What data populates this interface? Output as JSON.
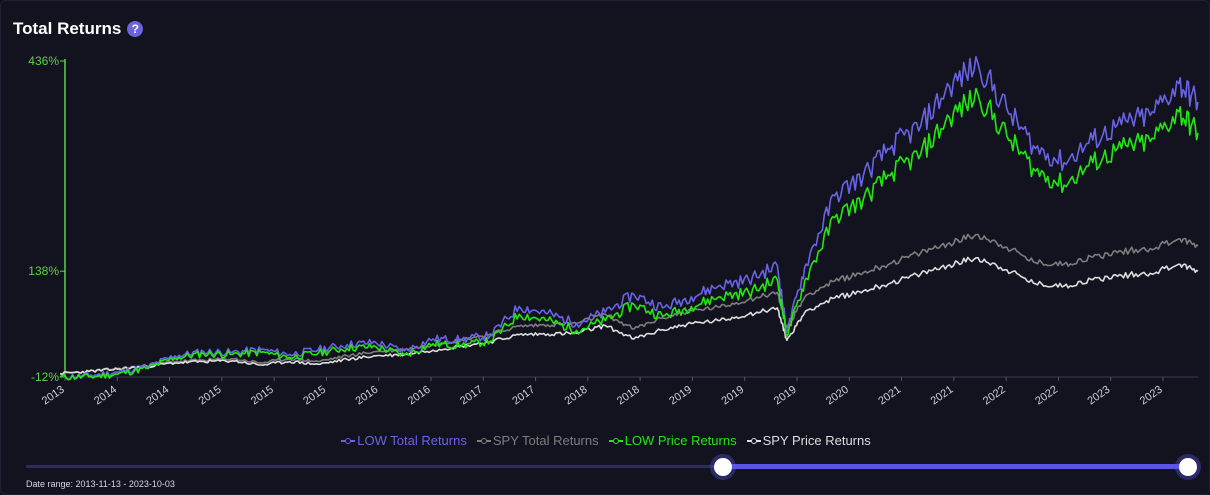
{
  "header": {
    "title": "Total Returns",
    "help_icon": "?"
  },
  "date_range_label": "Date range: 2013-11-13 - 2023-10-03",
  "slider": {
    "start_fraction": 0.6,
    "end_fraction": 1.0
  },
  "colors": {
    "low_total": "#6a63e6",
    "spy_total": "#7d7d7d",
    "low_price": "#22e812",
    "spy_price": "#dedede",
    "axis": "#5fd14a",
    "tick_text": "#cfcfd8"
  },
  "chart_data": {
    "type": "line",
    "y_axis": {
      "min": -12,
      "max": 436,
      "unit": "%",
      "tick_labels": [
        "-12%",
        "138%",
        "436%"
      ]
    },
    "x_tick_labels": [
      "2013",
      "2014",
      "2014",
      "2015",
      "2015",
      "2015",
      "2016",
      "2016",
      "2017",
      "2017",
      "2018",
      "2018",
      "2019",
      "2019",
      "2019",
      "2020",
      "2021",
      "2021",
      "2022",
      "2022",
      "2023",
      "2023"
    ],
    "legend": {
      "position": "bottom-center"
    },
    "series": [
      {
        "name": "LOW Total Returns",
        "color": "#6a63e6",
        "points": [
          [
            "2013-11",
            -12
          ],
          [
            "2014-02",
            -10
          ],
          [
            "2014-05",
            -5
          ],
          [
            "2014-08",
            2
          ],
          [
            "2014-11",
            18
          ],
          [
            "2015-02",
            24
          ],
          [
            "2015-05",
            23
          ],
          [
            "2015-08",
            27
          ],
          [
            "2015-11",
            20
          ],
          [
            "2016-02",
            27
          ],
          [
            "2016-05",
            34
          ],
          [
            "2016-08",
            37
          ],
          [
            "2016-11",
            25
          ],
          [
            "2017-02",
            42
          ],
          [
            "2017-05",
            41
          ],
          [
            "2017-08",
            47
          ],
          [
            "2017-11",
            88
          ],
          [
            "2018-02",
            78
          ],
          [
            "2018-05",
            64
          ],
          [
            "2018-08",
            80
          ],
          [
            "2018-11",
            105
          ],
          [
            "2019-02",
            86
          ],
          [
            "2019-05",
            102
          ],
          [
            "2019-08",
            118
          ],
          [
            "2019-11",
            126
          ],
          [
            "2020-02",
            146
          ],
          [
            "2020-03",
            52
          ],
          [
            "2020-05",
            148
          ],
          [
            "2020-08",
            245
          ],
          [
            "2020-11",
            274
          ],
          [
            "2021-02",
            316
          ],
          [
            "2021-05",
            344
          ],
          [
            "2021-08",
            400
          ],
          [
            "2021-11",
            432
          ],
          [
            "2022-02",
            368
          ],
          [
            "2022-05",
            312
          ],
          [
            "2022-08",
            292
          ],
          [
            "2022-11",
            324
          ],
          [
            "2023-02",
            346
          ],
          [
            "2023-05",
            359
          ],
          [
            "2023-08",
            404
          ],
          [
            "2023-10",
            378
          ]
        ]
      },
      {
        "name": "SPY Total Returns",
        "color": "#7d7d7d",
        "points": [
          [
            "2013-11",
            -8
          ],
          [
            "2014-02",
            -4
          ],
          [
            "2014-05",
            0
          ],
          [
            "2014-08",
            4
          ],
          [
            "2014-11",
            10
          ],
          [
            "2015-02",
            12
          ],
          [
            "2015-05",
            14
          ],
          [
            "2015-08",
            8
          ],
          [
            "2015-11",
            14
          ],
          [
            "2016-02",
            10
          ],
          [
            "2016-05",
            18
          ],
          [
            "2016-08",
            24
          ],
          [
            "2016-11",
            27
          ],
          [
            "2017-02",
            34
          ],
          [
            "2017-05",
            41
          ],
          [
            "2017-08",
            49
          ],
          [
            "2017-11",
            60
          ],
          [
            "2018-02",
            62
          ],
          [
            "2018-05",
            64
          ],
          [
            "2018-08",
            77
          ],
          [
            "2018-11",
            56
          ],
          [
            "2019-02",
            72
          ],
          [
            "2019-05",
            82
          ],
          [
            "2019-08",
            87
          ],
          [
            "2019-11",
            98
          ],
          [
            "2020-02",
            108
          ],
          [
            "2020-03",
            58
          ],
          [
            "2020-05",
            104
          ],
          [
            "2020-08",
            124
          ],
          [
            "2020-11",
            136
          ],
          [
            "2021-02",
            150
          ],
          [
            "2021-05",
            164
          ],
          [
            "2021-08",
            178
          ],
          [
            "2021-11",
            190
          ],
          [
            "2022-02",
            172
          ],
          [
            "2022-05",
            150
          ],
          [
            "2022-08",
            148
          ],
          [
            "2022-11",
            158
          ],
          [
            "2023-02",
            166
          ],
          [
            "2023-05",
            170
          ],
          [
            "2023-08",
            184
          ],
          [
            "2023-10",
            174
          ]
        ]
      },
      {
        "name": "LOW Price Returns",
        "color": "#22e812",
        "points": [
          [
            "2013-11",
            -12
          ],
          [
            "2014-02",
            -12
          ],
          [
            "2014-05",
            -8
          ],
          [
            "2014-08",
            0
          ],
          [
            "2014-11",
            15
          ],
          [
            "2015-02",
            21
          ],
          [
            "2015-05",
            20
          ],
          [
            "2015-08",
            23
          ],
          [
            "2015-11",
            16
          ],
          [
            "2016-02",
            22
          ],
          [
            "2016-05",
            29
          ],
          [
            "2016-08",
            31
          ],
          [
            "2016-11",
            19
          ],
          [
            "2017-02",
            35
          ],
          [
            "2017-05",
            33
          ],
          [
            "2017-08",
            39
          ],
          [
            "2017-11",
            77
          ],
          [
            "2018-02",
            68
          ],
          [
            "2018-05",
            54
          ],
          [
            "2018-08",
            68
          ],
          [
            "2018-11",
            91
          ],
          [
            "2019-02",
            74
          ],
          [
            "2019-05",
            88
          ],
          [
            "2019-08",
            102
          ],
          [
            "2019-11",
            108
          ],
          [
            "2020-02",
            126
          ],
          [
            "2020-03",
            46
          ],
          [
            "2020-05",
            128
          ],
          [
            "2020-08",
            214
          ],
          [
            "2020-11",
            240
          ],
          [
            "2021-02",
            278
          ],
          [
            "2021-05",
            304
          ],
          [
            "2021-08",
            356
          ],
          [
            "2021-11",
            388
          ],
          [
            "2022-02",
            330
          ],
          [
            "2022-05",
            280
          ],
          [
            "2022-08",
            260
          ],
          [
            "2022-11",
            292
          ],
          [
            "2023-02",
            312
          ],
          [
            "2023-05",
            322
          ],
          [
            "2023-08",
            364
          ],
          [
            "2023-10",
            334
          ]
        ]
      },
      {
        "name": "SPY Price Returns",
        "color": "#dedede",
        "points": [
          [
            "2013-11",
            -7
          ],
          [
            "2014-02",
            -4
          ],
          [
            "2014-05",
            -1
          ],
          [
            "2014-08",
            3
          ],
          [
            "2014-11",
            8
          ],
          [
            "2015-02",
            10
          ],
          [
            "2015-05",
            11
          ],
          [
            "2015-08",
            5
          ],
          [
            "2015-11",
            10
          ],
          [
            "2016-02",
            6
          ],
          [
            "2016-05",
            13
          ],
          [
            "2016-08",
            18
          ],
          [
            "2016-11",
            20
          ],
          [
            "2017-02",
            26
          ],
          [
            "2017-05",
            32
          ],
          [
            "2017-08",
            38
          ],
          [
            "2017-11",
            48
          ],
          [
            "2018-02",
            49
          ],
          [
            "2018-05",
            50
          ],
          [
            "2018-08",
            61
          ],
          [
            "2018-11",
            42
          ],
          [
            "2019-02",
            55
          ],
          [
            "2019-05",
            64
          ],
          [
            "2019-08",
            68
          ],
          [
            "2019-11",
            77
          ],
          [
            "2020-02",
            86
          ],
          [
            "2020-03",
            40
          ],
          [
            "2020-05",
            82
          ],
          [
            "2020-08",
            100
          ],
          [
            "2020-11",
            110
          ],
          [
            "2021-02",
            122
          ],
          [
            "2021-05",
            134
          ],
          [
            "2021-08",
            147
          ],
          [
            "2021-11",
            157
          ],
          [
            "2022-02",
            140
          ],
          [
            "2022-05",
            120
          ],
          [
            "2022-08",
            117
          ],
          [
            "2022-11",
            126
          ],
          [
            "2023-02",
            132
          ],
          [
            "2023-05",
            135
          ],
          [
            "2023-08",
            148
          ],
          [
            "2023-10",
            138
          ]
        ]
      }
    ]
  }
}
